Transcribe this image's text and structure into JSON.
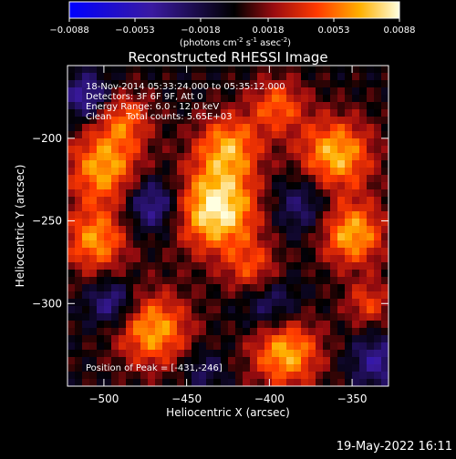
{
  "chart_data": {
    "type": "heatmap",
    "title": "Reconstructed RHESSI Image",
    "xlabel": "Heliocentric X (arcsec)",
    "ylabel": "Heliocentric Y (arcsec)",
    "xlim": [
      -522,
      -328
    ],
    "ylim": [
      -350,
      -156
    ],
    "xticks": [
      -500,
      -450,
      -400,
      -350
    ],
    "yticks": [
      -200,
      -250,
      -300
    ],
    "colorbar": {
      "range": [
        -0.0088,
        0.0088
      ],
      "ticks": [
        "-0.0088",
        "-0.0053",
        "-0.0018",
        "0.0018",
        "0.0053",
        "0.0088"
      ],
      "tick_values": [
        -0.0088,
        -0.0053,
        -0.0018,
        0.0018,
        0.0053,
        0.0088
      ],
      "units_base": "(photons cm",
      "units_sup1": "-2",
      "units_mid": " s",
      "units_sup2": "-1",
      "units_mid2": " asec",
      "units_sup3": "-2",
      "units_end": ")"
    },
    "annotations": [
      "18-Nov-2014 05:33:24.000 to 05:35:12.000",
      "Detectors: 3F 6F 9F, Att 0",
      "Energy Range: 6.0 - 12.0 keV",
      "Clean     Total counts: 5.65E+03"
    ],
    "peak_label": "Position of Peak = [-431,-246]",
    "peak": {
      "x": -431,
      "y": -246
    },
    "blobs": [
      {
        "x": -432,
        "y": -243,
        "s": 18,
        "a": 0.0088
      },
      {
        "x": -425,
        "y": -205,
        "s": 14,
        "a": 0.006
      },
      {
        "x": -500,
        "y": -218,
        "s": 16,
        "a": 0.0065
      },
      {
        "x": -505,
        "y": -262,
        "s": 14,
        "a": 0.006
      },
      {
        "x": -360,
        "y": -210,
        "s": 16,
        "a": 0.007
      },
      {
        "x": -350,
        "y": -258,
        "s": 14,
        "a": 0.0068
      },
      {
        "x": -470,
        "y": -316,
        "s": 16,
        "a": 0.0065
      },
      {
        "x": -390,
        "y": -330,
        "s": 15,
        "a": 0.0068
      },
      {
        "x": -488,
        "y": -188,
        "s": 12,
        "a": 0.0045
      },
      {
        "x": -395,
        "y": -180,
        "s": 12,
        "a": 0.0048
      },
      {
        "x": -410,
        "y": -280,
        "s": 12,
        "a": 0.0042
      },
      {
        "x": -340,
        "y": -300,
        "s": 10,
        "a": 0.004
      },
      {
        "x": -470,
        "y": -240,
        "s": 12,
        "a": -0.0052
      },
      {
        "x": -495,
        "y": -300,
        "s": 10,
        "a": -0.0045
      },
      {
        "x": -380,
        "y": -240,
        "s": 13,
        "a": -0.0035
      },
      {
        "x": -400,
        "y": -300,
        "s": 12,
        "a": -0.0035
      },
      {
        "x": -510,
        "y": -175,
        "s": 10,
        "a": -0.0048
      },
      {
        "x": -335,
        "y": -335,
        "s": 11,
        "a": -0.004
      },
      {
        "x": -440,
        "y": -340,
        "s": 9,
        "a": -0.0025
      }
    ]
  },
  "footer": {
    "timestamp": "19-May-2022 16:11"
  }
}
